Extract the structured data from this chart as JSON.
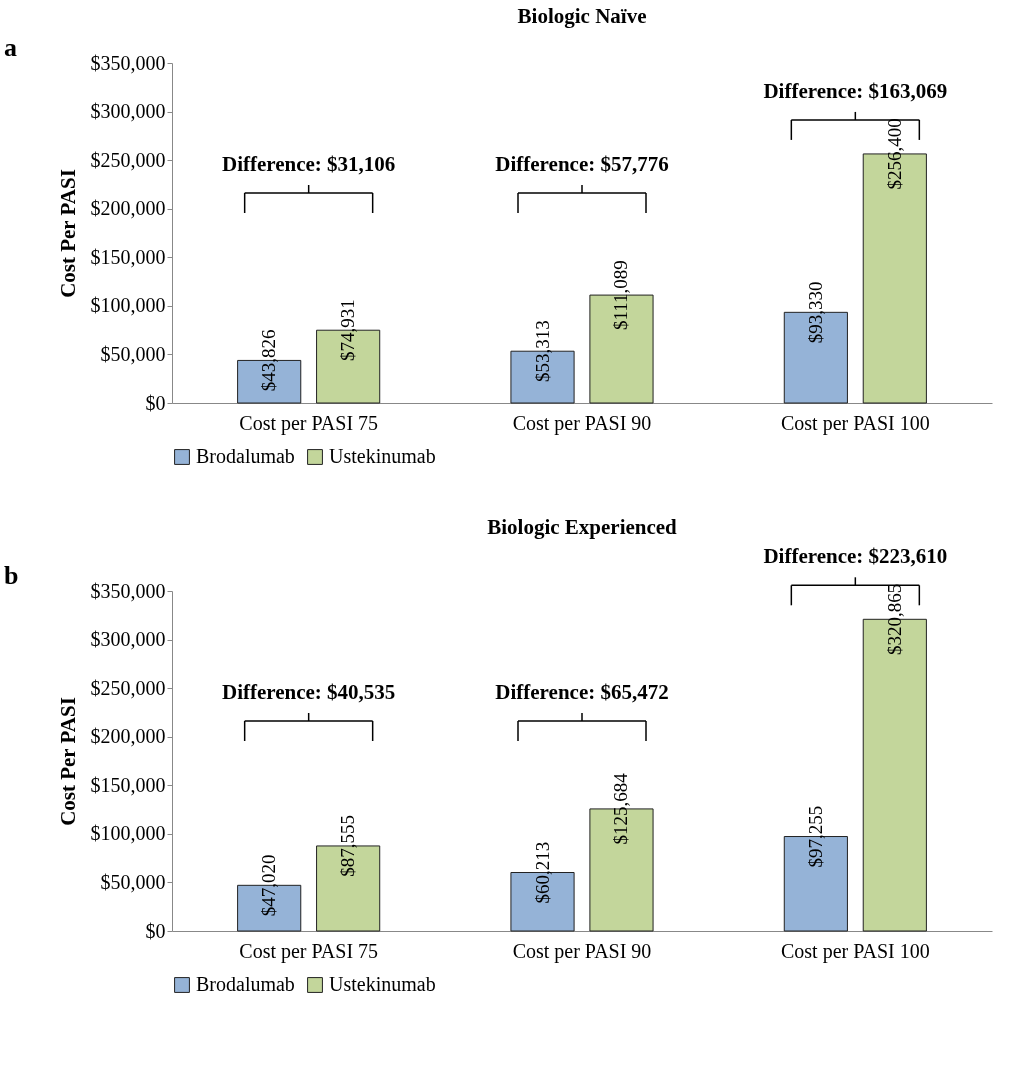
{
  "chart_data": [
    {
      "type": "bar",
      "title": "Biologic Naïve",
      "ylabel": "Cost Per PASI",
      "categories": [
        "Cost per PASI 75",
        "Cost per PASI 90",
        "Cost per PASI 100"
      ],
      "series": [
        {
          "name": "Brodalumab",
          "color": "#95b3d7",
          "values": [
            43826,
            53313,
            93330
          ],
          "value_labels": [
            "$43,826",
            "$53,313",
            "$93,330"
          ]
        },
        {
          "name": "Ustekinumab",
          "color": "#c3d69b",
          "values": [
            74931,
            111089,
            256400
          ],
          "value_labels": [
            "$74,931",
            "$111,089",
            "$256,400"
          ]
        }
      ],
      "ylim": [
        0,
        350000
      ],
      "yticks": [
        {
          "value": 0,
          "label": "$0"
        },
        {
          "value": 50000,
          "label": "$50,000"
        },
        {
          "value": 100000,
          "label": "$100,000"
        },
        {
          "value": 150000,
          "label": "$150,000"
        },
        {
          "value": 200000,
          "label": "$200,000"
        },
        {
          "value": 250000,
          "label": "$250,000"
        },
        {
          "value": 300000,
          "label": "$300,000"
        },
        {
          "value": 350000,
          "label": "$350,000"
        }
      ],
      "grid": false,
      "legend": "bottom",
      "annotations": [
        "a",
        "Difference: $31,106",
        "Difference: $57,776",
        "Difference: $163,069"
      ]
    },
    {
      "type": "bar",
      "title": "Biologic Experienced",
      "ylabel": "Cost Per PASI",
      "categories": [
        "Cost per PASI 75",
        "Cost per PASI 90",
        "Cost per PASI 100"
      ],
      "series": [
        {
          "name": "Brodalumab",
          "color": "#95b3d7",
          "values": [
            47020,
            60213,
            97255
          ],
          "value_labels": [
            "$47,020",
            "$60,213",
            "$97,255"
          ]
        },
        {
          "name": "Ustekinumab",
          "color": "#c3d69b",
          "values": [
            87555,
            125684,
            320865
          ],
          "value_labels": [
            "$87,555",
            "$125,684",
            "$320,865"
          ]
        }
      ],
      "ylim": [
        0,
        350000
      ],
      "yticks": [
        {
          "value": 0,
          "label": "$0"
        },
        {
          "value": 50000,
          "label": "$50,000"
        },
        {
          "value": 100000,
          "label": "$100,000"
        },
        {
          "value": 150000,
          "label": "$150,000"
        },
        {
          "value": 200000,
          "label": "$200,000"
        },
        {
          "value": 250000,
          "label": "$250,000"
        },
        {
          "value": 300000,
          "label": "$300,000"
        },
        {
          "value": 350000,
          "label": "$350,000"
        }
      ],
      "grid": false,
      "legend": "bottom",
      "annotations": [
        "b",
        "Difference: $40,535",
        "Difference: $65,472",
        "Difference: $223,610"
      ]
    }
  ]
}
